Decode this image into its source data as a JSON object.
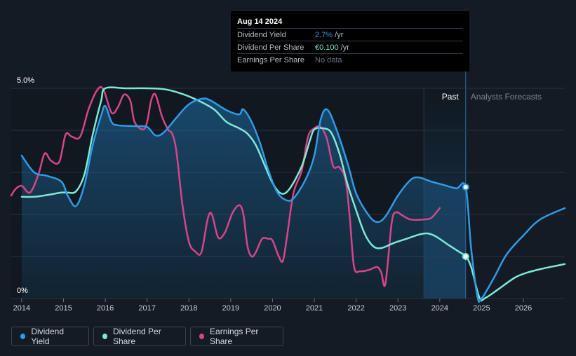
{
  "tooltip": {
    "date": "Aug 14 2024",
    "rows": [
      {
        "label": "Dividend Yield",
        "value": "2.7%",
        "unit": " /yr",
        "color": "#2e9be8"
      },
      {
        "label": "Dividend Per Share",
        "value": "€0.100",
        "unit": " /yr",
        "color": "#7de8d6"
      },
      {
        "label": "Earnings Per Share",
        "value": "No data",
        "unit": "",
        "color": "#6b7280"
      }
    ]
  },
  "regions": {
    "past": "Past",
    "forecast": "Analysts Forecasts"
  },
  "legend": [
    {
      "label": "Dividend Yield",
      "color": "#2e9be8"
    },
    {
      "label": "Dividend Per Share",
      "color": "#7de8d6"
    },
    {
      "label": "Earnings Per Share",
      "color": "#d6458a"
    }
  ],
  "chart_data": {
    "type": "line",
    "y_ticks": [
      "5.0%",
      "0%"
    ],
    "ylim": [
      0,
      5
    ],
    "x_ticks": [
      "2014",
      "2015",
      "2016",
      "2017",
      "2018",
      "2019",
      "2020",
      "2021",
      "2022",
      "2023",
      "2024",
      "2025",
      "2026"
    ],
    "xlim": [
      2013.75,
      2026.99
    ],
    "grid": true,
    "series": [
      {
        "name": "Dividend Yield",
        "color": "#2e9be8",
        "filled": true,
        "points": [
          [
            2014.0,
            3.4
          ],
          [
            2014.3,
            3.0
          ],
          [
            2014.6,
            2.92
          ],
          [
            2014.95,
            2.78
          ],
          [
            2015.1,
            2.45
          ],
          [
            2015.3,
            2.2
          ],
          [
            2015.5,
            2.7
          ],
          [
            2015.7,
            3.65
          ],
          [
            2015.9,
            4.35
          ],
          [
            2016.0,
            4.58
          ],
          [
            2016.15,
            4.2
          ],
          [
            2016.3,
            4.12
          ],
          [
            2016.7,
            4.1
          ],
          [
            2017.0,
            4.08
          ],
          [
            2017.2,
            3.88
          ],
          [
            2017.4,
            3.95
          ],
          [
            2017.7,
            4.3
          ],
          [
            2018.0,
            4.62
          ],
          [
            2018.3,
            4.75
          ],
          [
            2018.5,
            4.72
          ],
          [
            2018.9,
            4.48
          ],
          [
            2019.2,
            4.38
          ],
          [
            2019.3,
            4.5
          ],
          [
            2019.5,
            4.2
          ],
          [
            2019.7,
            3.7
          ],
          [
            2019.9,
            3.05
          ],
          [
            2020.1,
            2.55
          ],
          [
            2020.3,
            2.35
          ],
          [
            2020.5,
            2.38
          ],
          [
            2020.8,
            2.85
          ],
          [
            2021.0,
            3.4
          ],
          [
            2021.15,
            4.25
          ],
          [
            2021.3,
            4.5
          ],
          [
            2021.5,
            4.1
          ],
          [
            2021.8,
            3.2
          ],
          [
            2022.0,
            2.5
          ],
          [
            2022.3,
            1.98
          ],
          [
            2022.5,
            1.82
          ],
          [
            2022.7,
            1.95
          ],
          [
            2023.0,
            2.45
          ],
          [
            2023.3,
            2.82
          ],
          [
            2023.5,
            2.88
          ],
          [
            2023.8,
            2.78
          ],
          [
            2024.1,
            2.7
          ],
          [
            2024.4,
            2.62
          ],
          [
            2024.62,
            2.65
          ],
          [
            2024.75,
            1.2
          ],
          [
            2024.9,
            0.05
          ],
          [
            2025.0,
            0.0
          ],
          [
            2025.3,
            0.5
          ],
          [
            2025.6,
            1.05
          ],
          [
            2026.0,
            1.5
          ],
          [
            2026.4,
            1.88
          ],
          [
            2026.99,
            2.15
          ]
        ]
      },
      {
        "name": "Dividend Per Share",
        "color": "#7de8d6",
        "filled": false,
        "points": [
          [
            2014.0,
            2.42
          ],
          [
            2014.3,
            2.42
          ],
          [
            2014.6,
            2.46
          ],
          [
            2014.95,
            2.52
          ],
          [
            2015.1,
            2.52
          ],
          [
            2015.3,
            2.55
          ],
          [
            2015.5,
            2.95
          ],
          [
            2015.7,
            3.9
          ],
          [
            2015.9,
            4.7
          ],
          [
            2016.0,
            5.0
          ],
          [
            2016.5,
            5.0
          ],
          [
            2017.0,
            5.0
          ],
          [
            2017.4,
            4.98
          ],
          [
            2017.8,
            4.88
          ],
          [
            2018.2,
            4.72
          ],
          [
            2018.6,
            4.5
          ],
          [
            2018.9,
            4.2
          ],
          [
            2019.2,
            4.05
          ],
          [
            2019.4,
            3.92
          ],
          [
            2019.6,
            3.65
          ],
          [
            2019.8,
            3.2
          ],
          [
            2020.0,
            2.75
          ],
          [
            2020.2,
            2.5
          ],
          [
            2020.4,
            2.6
          ],
          [
            2020.7,
            3.15
          ],
          [
            2020.9,
            3.78
          ],
          [
            2021.0,
            4.02
          ],
          [
            2021.2,
            4.05
          ],
          [
            2021.4,
            3.95
          ],
          [
            2021.6,
            3.45
          ],
          [
            2021.8,
            2.7
          ],
          [
            2022.0,
            2.1
          ],
          [
            2022.2,
            1.55
          ],
          [
            2022.4,
            1.25
          ],
          [
            2022.6,
            1.2
          ],
          [
            2022.9,
            1.32
          ],
          [
            2023.2,
            1.42
          ],
          [
            2023.5,
            1.52
          ],
          [
            2023.7,
            1.55
          ],
          [
            2023.9,
            1.48
          ],
          [
            2024.2,
            1.28
          ],
          [
            2024.45,
            1.12
          ],
          [
            2024.62,
            1.0
          ],
          [
            2024.75,
            0.75
          ],
          [
            2024.95,
            0.02
          ],
          [
            2025.1,
            0.02
          ],
          [
            2025.4,
            0.22
          ],
          [
            2025.8,
            0.5
          ],
          [
            2026.1,
            0.62
          ],
          [
            2026.5,
            0.72
          ],
          [
            2026.99,
            0.82
          ]
        ]
      },
      {
        "name": "Earnings Per Share",
        "color": "#d6458a",
        "filled": false,
        "points": [
          [
            2013.75,
            2.45
          ],
          [
            2013.85,
            2.6
          ],
          [
            2014.0,
            2.68
          ],
          [
            2014.2,
            2.52
          ],
          [
            2014.4,
            2.95
          ],
          [
            2014.55,
            3.45
          ],
          [
            2014.7,
            3.28
          ],
          [
            2014.9,
            3.25
          ],
          [
            2015.05,
            3.9
          ],
          [
            2015.2,
            3.85
          ],
          [
            2015.4,
            3.85
          ],
          [
            2015.6,
            4.5
          ],
          [
            2015.8,
            4.95
          ],
          [
            2015.95,
            4.98
          ],
          [
            2016.15,
            4.42
          ],
          [
            2016.3,
            4.55
          ],
          [
            2016.45,
            4.85
          ],
          [
            2016.6,
            4.7
          ],
          [
            2016.7,
            4.2
          ],
          [
            2016.9,
            4.02
          ],
          [
            2017.0,
            4.2
          ],
          [
            2017.1,
            4.72
          ],
          [
            2017.2,
            4.85
          ],
          [
            2017.35,
            4.35
          ],
          [
            2017.5,
            4.02
          ],
          [
            2017.6,
            3.92
          ],
          [
            2017.7,
            3.5
          ],
          [
            2017.85,
            2.2
          ],
          [
            2018.0,
            1.35
          ],
          [
            2018.15,
            1.12
          ],
          [
            2018.3,
            1.1
          ],
          [
            2018.45,
            1.9
          ],
          [
            2018.55,
            2.0
          ],
          [
            2018.7,
            1.45
          ],
          [
            2018.85,
            1.55
          ],
          [
            2018.95,
            1.8
          ],
          [
            2019.05,
            2.05
          ],
          [
            2019.2,
            2.22
          ],
          [
            2019.3,
            2.02
          ],
          [
            2019.4,
            1.25
          ],
          [
            2019.5,
            1.0
          ],
          [
            2019.6,
            1.1
          ],
          [
            2019.75,
            1.42
          ],
          [
            2019.9,
            1.42
          ],
          [
            2020.0,
            1.38
          ],
          [
            2020.15,
            1.0
          ],
          [
            2020.25,
            0.9
          ],
          [
            2020.35,
            1.5
          ],
          [
            2020.5,
            2.5
          ],
          [
            2020.7,
            3.05
          ],
          [
            2020.85,
            3.85
          ],
          [
            2021.0,
            4.05
          ],
          [
            2021.15,
            4.08
          ],
          [
            2021.3,
            3.8
          ],
          [
            2021.45,
            3.15
          ],
          [
            2021.6,
            3.12
          ],
          [
            2021.75,
            2.8
          ],
          [
            2021.85,
            1.9
          ],
          [
            2021.95,
            0.75
          ],
          [
            2022.1,
            0.65
          ],
          [
            2022.3,
            0.68
          ],
          [
            2022.5,
            0.75
          ],
          [
            2022.6,
            0.62
          ],
          [
            2022.7,
            0.35
          ],
          [
            2022.85,
            1.8
          ],
          [
            2022.95,
            2.05
          ],
          [
            2023.1,
            1.98
          ],
          [
            2023.3,
            1.88
          ],
          [
            2023.6,
            1.88
          ],
          [
            2023.8,
            1.92
          ],
          [
            2024.0,
            2.15
          ]
        ]
      }
    ],
    "highlight": {
      "x": 2024.62,
      "yield": 2.65,
      "dps": 1.0
    },
    "past_band": [
      2023.62,
      2024.62
    ],
    "forecast_start": 2024.62
  }
}
